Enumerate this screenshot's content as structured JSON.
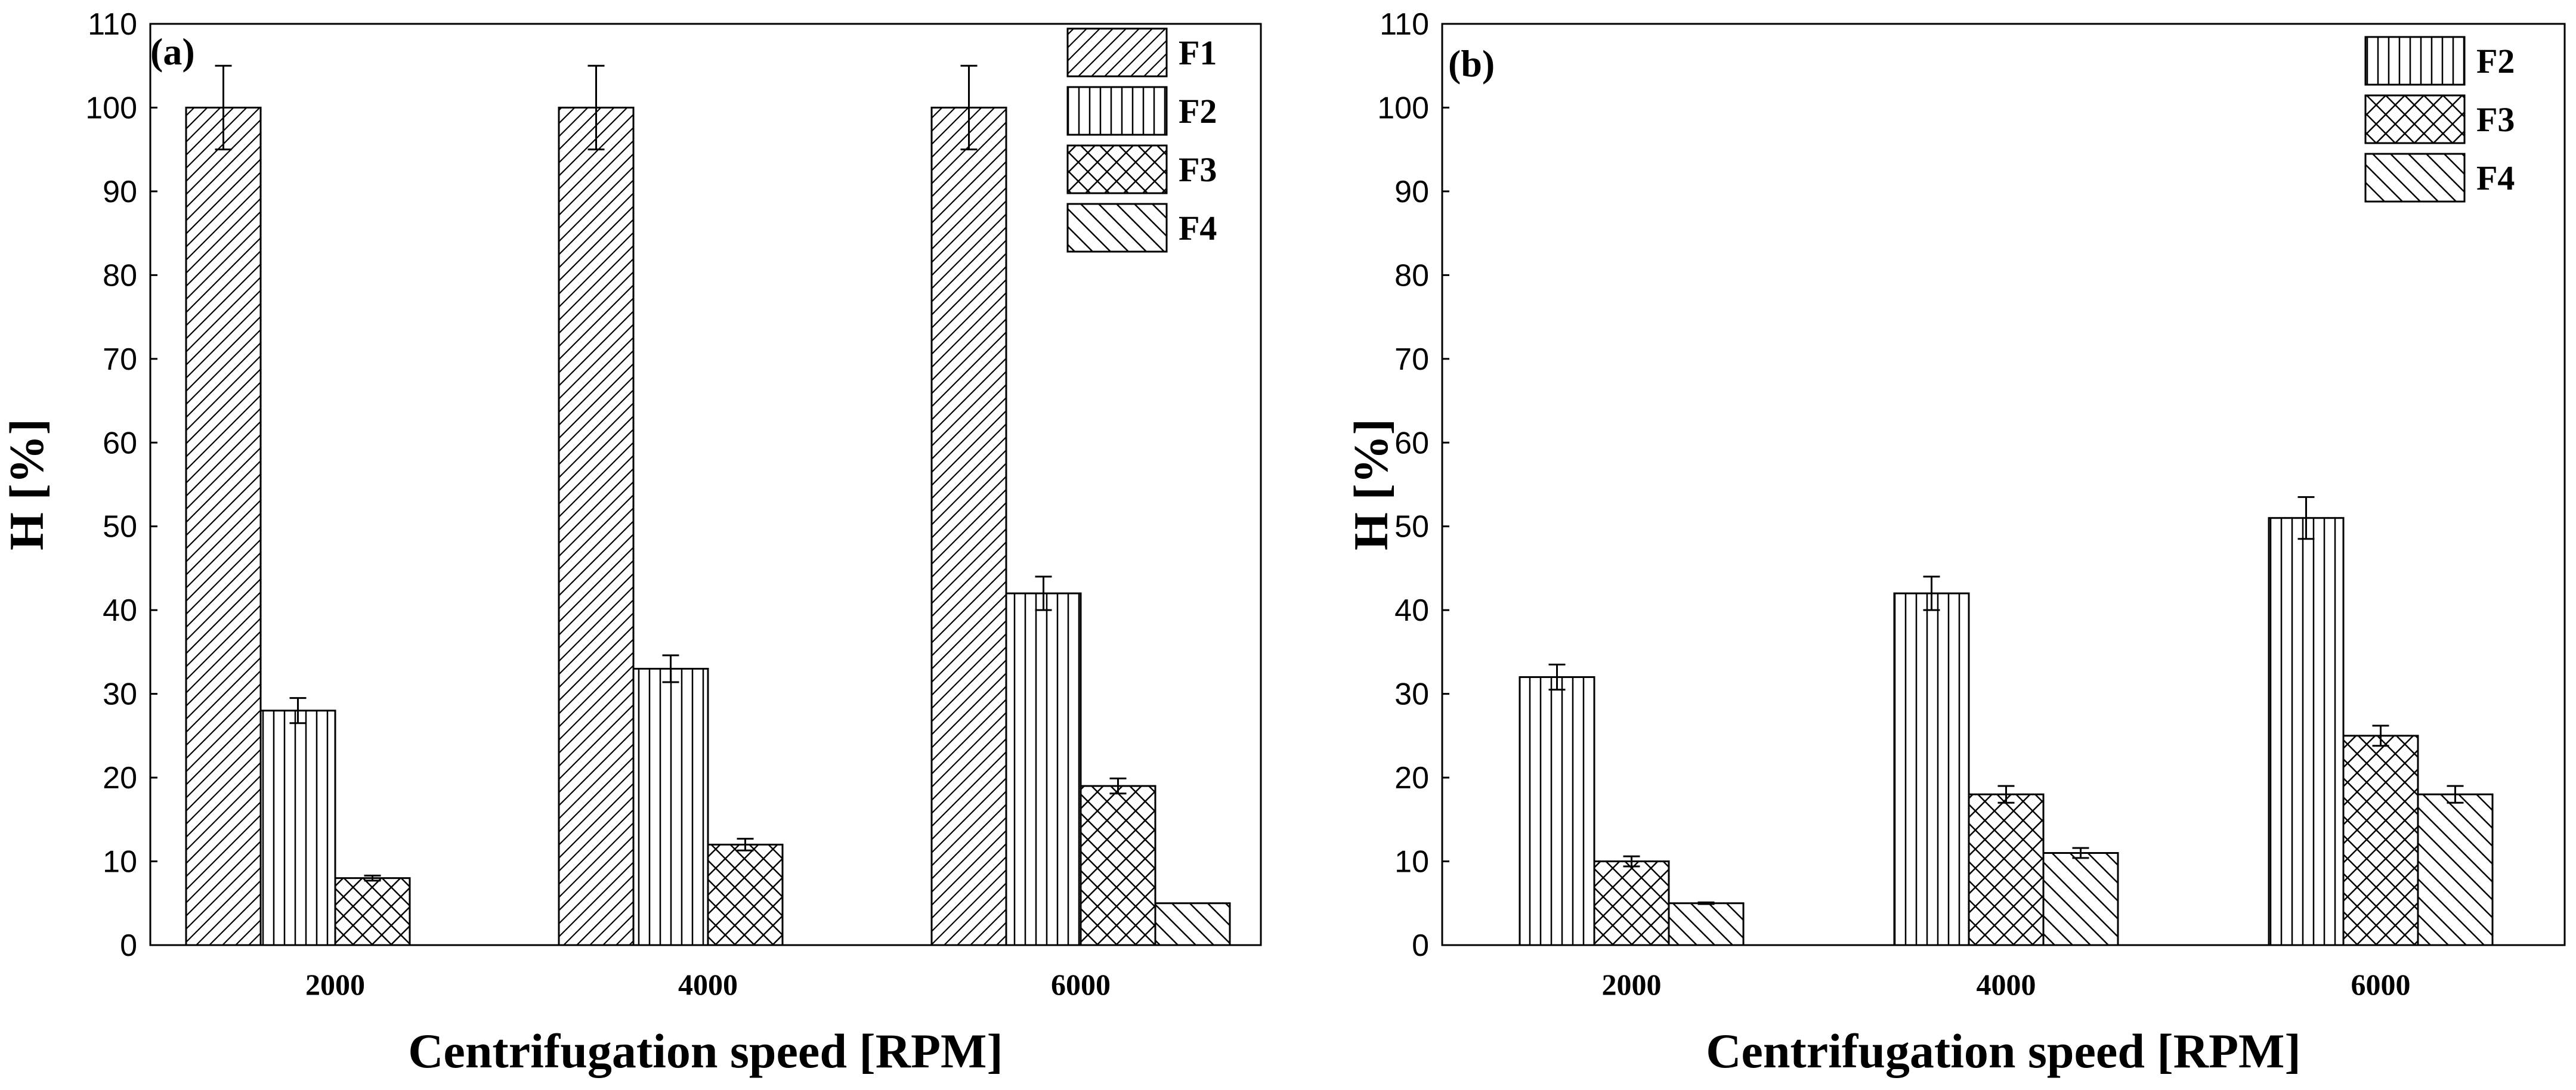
{
  "chart_data": [
    {
      "type": "bar",
      "panel_label": "(a)",
      "categories": [
        "2000",
        "4000",
        "6000"
      ],
      "series": [
        {
          "name": "F1",
          "pattern": "diag-right",
          "values": [
            100,
            100,
            100
          ],
          "errors": [
            5,
            5,
            5
          ]
        },
        {
          "name": "F2",
          "pattern": "vertical",
          "values": [
            28,
            33,
            42
          ],
          "errors": [
            1.5,
            1.6,
            2
          ]
        },
        {
          "name": "F3",
          "pattern": "crosshatch",
          "values": [
            8,
            12,
            19
          ],
          "errors": [
            0.3,
            0.7,
            0.9
          ]
        },
        {
          "name": "F4",
          "pattern": "diag-left",
          "values": [
            0,
            0,
            5
          ],
          "errors": [
            0,
            0,
            0
          ]
        }
      ],
      "xlabel": "Centrifugation speed [RPM]",
      "ylabel": "H [%]",
      "ylim": [
        0,
        110
      ],
      "yticks": [
        0,
        10,
        20,
        30,
        40,
        50,
        60,
        70,
        80,
        90,
        100,
        110
      ],
      "legend_position": "top-right"
    },
    {
      "type": "bar",
      "panel_label": "(b)",
      "categories": [
        "2000",
        "4000",
        "6000"
      ],
      "series": [
        {
          "name": "F2",
          "pattern": "vertical",
          "values": [
            32,
            42,
            51
          ],
          "errors": [
            1.5,
            2,
            2.5
          ]
        },
        {
          "name": "F3",
          "pattern": "crosshatch",
          "values": [
            10,
            18,
            25
          ],
          "errors": [
            0.6,
            1,
            1.2
          ]
        },
        {
          "name": "F4",
          "pattern": "diag-left",
          "values": [
            5,
            11,
            18
          ],
          "errors": [
            0.1,
            0.6,
            1
          ]
        }
      ],
      "xlabel": "Centrifugation speed [RPM]",
      "ylabel": "H [%]",
      "ylim": [
        0,
        110
      ],
      "yticks": [
        0,
        10,
        20,
        30,
        40,
        50,
        60,
        70,
        80,
        90,
        100,
        110
      ],
      "legend_position": "top-right"
    }
  ]
}
